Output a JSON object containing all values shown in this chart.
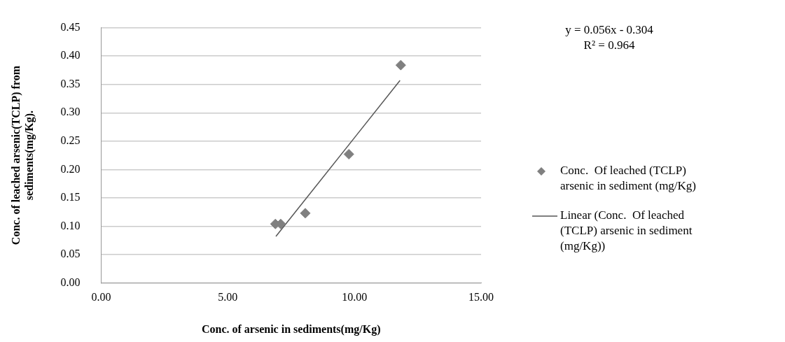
{
  "chart_data": {
    "type": "scatter",
    "xlabel": "Conc. of arsenic in sediments(mg/Kg)",
    "ylabel": "Conc. of leached arsenic(TCLP) from sediments(mg/Kg).",
    "xlim": [
      0,
      15
    ],
    "xticks": [
      {
        "value": 0,
        "label": "0.00"
      },
      {
        "value": 5,
        "label": "5.00"
      },
      {
        "value": 10,
        "label": "10.00"
      },
      {
        "value": 15,
        "label": "15.00"
      }
    ],
    "ylim": [
      0,
      0.45
    ],
    "yticks": [
      {
        "value": 0,
        "label": "0.00"
      },
      {
        "value": 0.05,
        "label": "0.05"
      },
      {
        "value": 0.1,
        "label": "0.10"
      },
      {
        "value": 0.15,
        "label": "0.15"
      },
      {
        "value": 0.2,
        "label": "0.20"
      },
      {
        "value": 0.25,
        "label": "0.25"
      },
      {
        "value": 0.3,
        "label": "0.30"
      },
      {
        "value": 0.35,
        "label": "0.35"
      },
      {
        "value": 0.4,
        "label": "0.40"
      },
      {
        "value": 0.45,
        "label": "0.45"
      }
    ],
    "grid": "y",
    "legend": "right",
    "marker": "diamond",
    "annotations": [
      "y = 0.056x - 0.304",
      "R² = 0.964"
    ],
    "series": [
      {
        "name": "Conc.  Of leached (TCLP) arsenic in sediment (mg/Kg)",
        "color": "#808080",
        "x": [
          6.88,
          7.09,
          8.06,
          9.78,
          11.83
        ],
        "values": [
          0.104,
          0.104,
          0.123,
          0.227,
          0.384
        ]
      },
      {
        "type": "line",
        "name": "Linear (Conc.  Of leached (TCLP) arsenic in sediment (mg/Kg))",
        "color": "#555555",
        "x": [
          6.9,
          11.8
        ],
        "values": [
          0.082,
          0.357
        ],
        "marker": "none",
        "line_style": "solid"
      }
    ]
  }
}
